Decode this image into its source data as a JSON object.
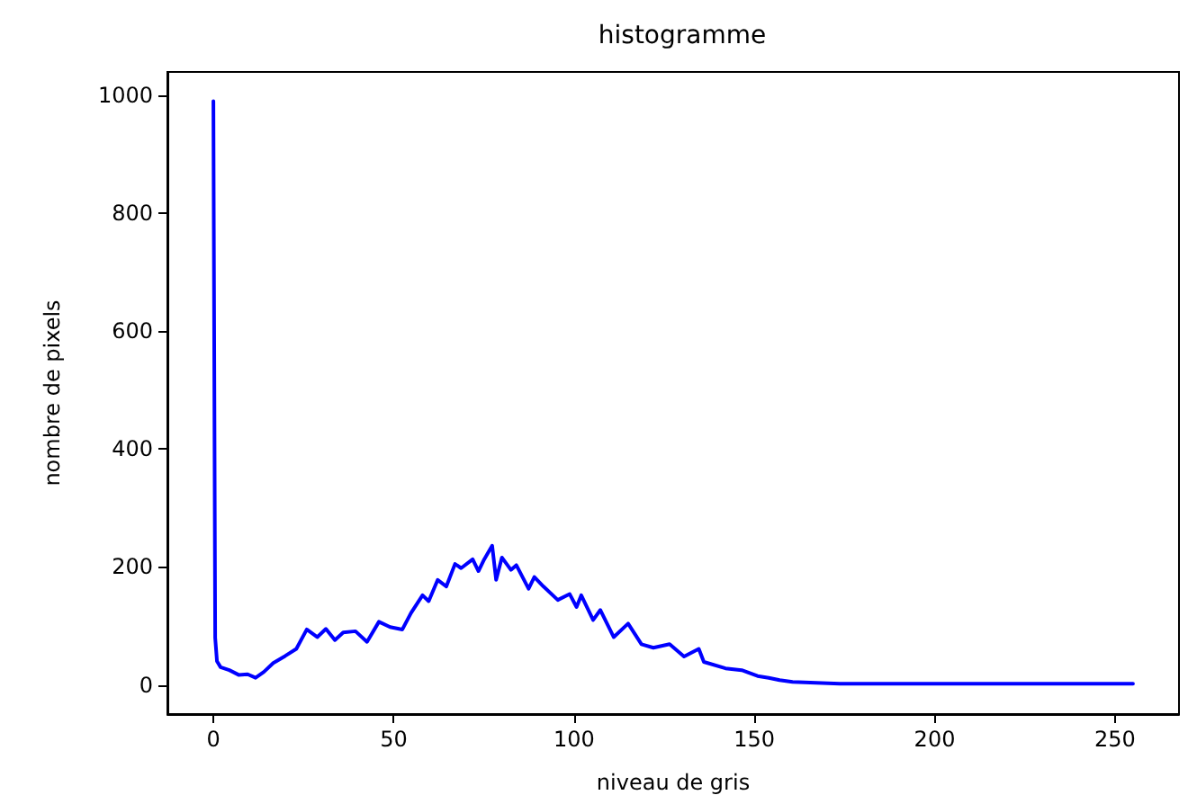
{
  "chart_data": {
    "type": "line",
    "title": "histogramme",
    "xlabel": "niveau de gris",
    "ylabel": "nombre de pixels",
    "series": [
      {
        "color": "#0000ff",
        "x": [
          0,
          0.5,
          1,
          2,
          4.4,
          7,
          9.5,
          11.7,
          14,
          16.6,
          19.9,
          23,
          25.9,
          28.8,
          31.2,
          33.7,
          36,
          39.4,
          42.6,
          45.9,
          49,
          52.4,
          54.8,
          58,
          59.7,
          62.2,
          64.6,
          67,
          68.7,
          71.9,
          73.5,
          75.1,
          77.3,
          78.4,
          80,
          82.5,
          84,
          87.4,
          89,
          91.5,
          95.5,
          98.8,
          100.7,
          102,
          105.3,
          107.3,
          111,
          115,
          118.7,
          122,
          126.5,
          130.5,
          134.6,
          136,
          142,
          146.5,
          150.9,
          154,
          157,
          160.6,
          168.8,
          173.7,
          200,
          255
        ],
        "values": [
          990,
          80,
          40,
          30,
          25,
          17,
          18,
          12,
          22,
          37,
          49,
          61,
          94,
          81,
          95,
          76,
          89,
          91,
          73,
          107,
          98,
          94,
          122,
          152,
          142,
          178,
          167,
          205,
          198,
          213,
          193,
          213,
          236,
          178,
          216,
          195,
          203,
          163,
          183,
          167,
          144,
          154,
          132,
          152,
          110,
          127,
          81,
          104,
          69,
          63,
          69,
          48,
          61,
          39,
          28,
          25,
          15,
          12,
          8,
          5,
          3,
          2,
          2,
          2
        ]
      }
    ],
    "xlim": [
      -12.75,
      267.75
    ],
    "ylim": [
      -49.5,
      1039.5
    ],
    "xticks": [
      0,
      50,
      100,
      150,
      200,
      250
    ],
    "yticks": [
      0,
      200,
      400,
      600,
      800,
      1000
    ],
    "grid": false,
    "marker": "none",
    "line_style": "solid"
  }
}
